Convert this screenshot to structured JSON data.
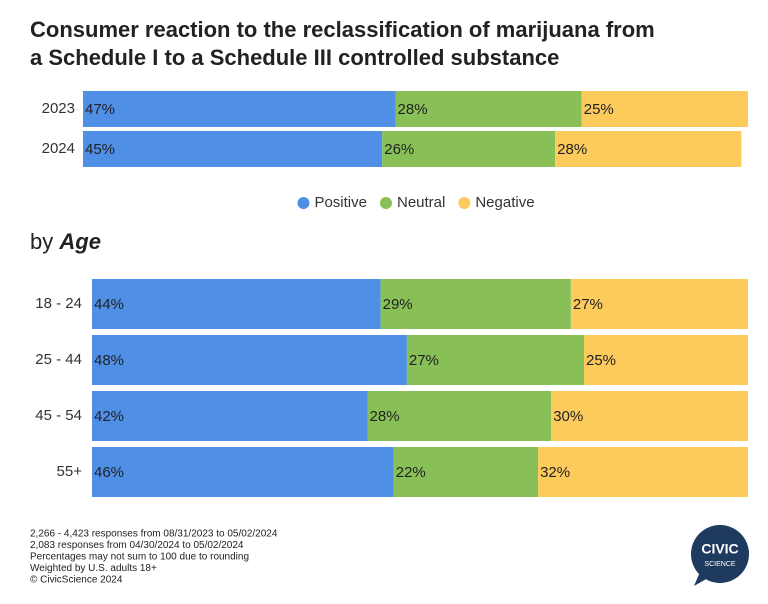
{
  "title": "Consumer reaction to the reclassification of marijuana from a Schedule I to a Schedule III controlled substance",
  "chart_data": [
    {
      "type": "bar",
      "orientation": "horizontal",
      "stacked": true,
      "categories": [
        "2023",
        "2024"
      ],
      "xlim": [
        0,
        100
      ],
      "legend": "bottom",
      "series": [
        {
          "name": "Positive",
          "color": "#4f8fe6",
          "values": [
            47,
            45
          ],
          "value_labels": [
            "47%",
            "45%"
          ]
        },
        {
          "name": "Neutral",
          "color": "#88c057",
          "values": [
            28,
            26
          ],
          "value_labels": [
            "28%",
            "26%"
          ]
        },
        {
          "name": "Negative",
          "color": "#fdcb5c",
          "values": [
            25,
            28
          ],
          "value_labels": [
            "25%",
            "28%"
          ]
        }
      ]
    },
    {
      "type": "bar",
      "orientation": "horizontal",
      "stacked": true,
      "subtitle": [
        "by",
        "Age"
      ],
      "categories": [
        "18 - 24",
        "25 - 44",
        "45 - 54",
        "55+"
      ],
      "xlim": [
        0,
        100
      ],
      "series": [
        {
          "color": "#4f8fe6",
          "values": [
            44,
            48,
            42,
            46
          ],
          "value_labels": [
            "44%",
            "48%",
            "42%",
            "46%"
          ]
        },
        {
          "color": "#88c057",
          "values": [
            29,
            27,
            28,
            22
          ],
          "value_labels": [
            "29%",
            "27%",
            "28%",
            "22%"
          ]
        },
        {
          "color": "#fdcb5c",
          "values": [
            27,
            25,
            30,
            32
          ],
          "value_labels": [
            "27%",
            "25%",
            "30%",
            "32%"
          ]
        }
      ]
    }
  ],
  "footnotes": [
    "2,266 - 4,423 responses from 08/31/2023 to 05/02/2024",
    "2,083 responses from 04/30/2024 to 05/02/2024",
    "Percentages may not sum to 100 due to rounding",
    "Weighted by U.S. adults 18+",
    "© CivicScience 2024"
  ],
  "logo": [
    "CIVIC",
    "SCIENCE"
  ]
}
